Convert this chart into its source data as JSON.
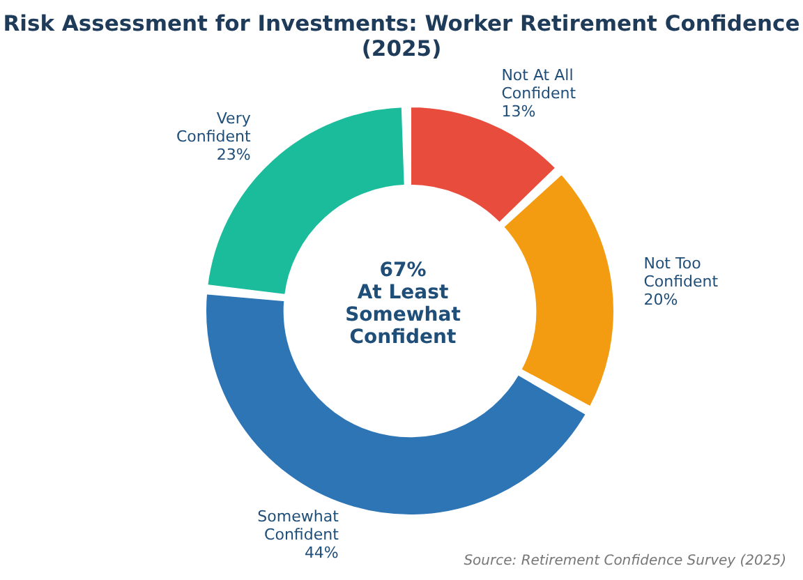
{
  "chart_data": {
    "type": "donut",
    "title": "Risk Assessment for Investments: Worker Retirement Confidence (2025)",
    "categories": [
      "Not At All Confident",
      "Not Too Confident",
      "Somewhat Confident",
      "Very Confident"
    ],
    "values": [
      13,
      20,
      44,
      23
    ],
    "colors": [
      "#e74c3c",
      "#f39c12",
      "#2e75b6",
      "#1abc9c"
    ],
    "value_labels": [
      "13%",
      "20%",
      "44%",
      "23%"
    ],
    "annotations": [
      "67%\nAt Least\nSomewhat\nConfident",
      "Source: Retirement Confidence Survey (2025)"
    ]
  }
}
